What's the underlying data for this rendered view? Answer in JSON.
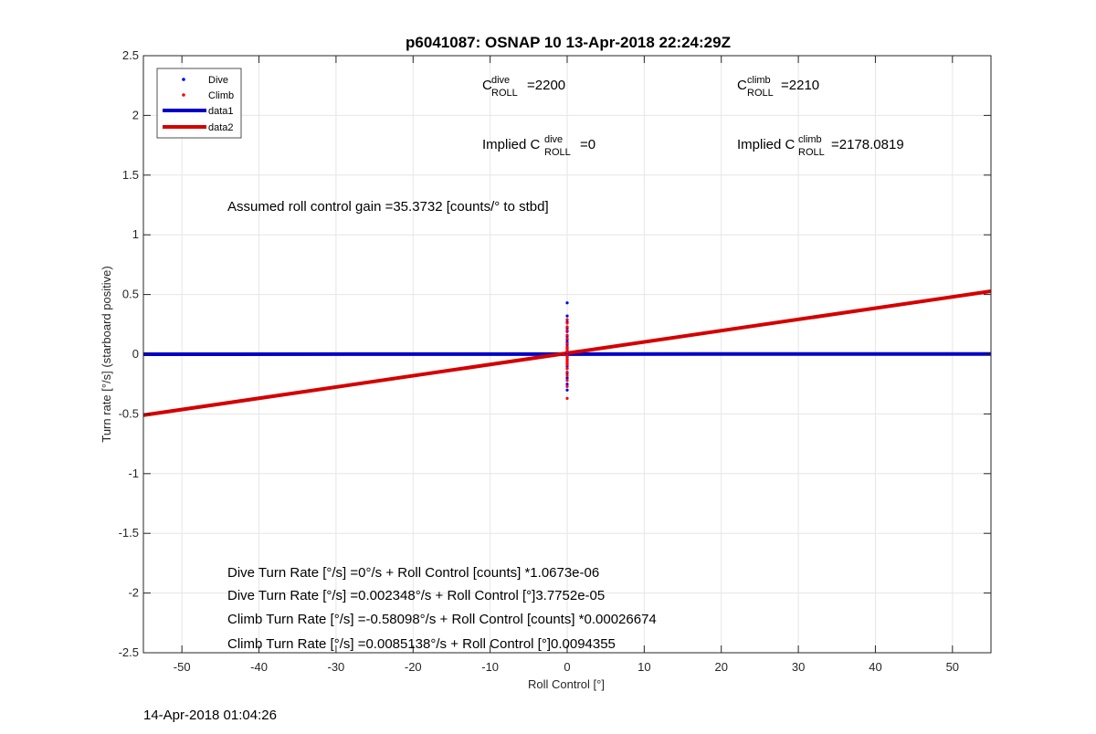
{
  "chart_data": {
    "type": "scatter",
    "title": "p6041087: OSNAP 10 13-Apr-2018 22:24:29Z",
    "xlabel": "Roll Control [°]",
    "ylabel": "Turn rate [°/s] (starboard positive)",
    "xlim": [
      -55,
      55
    ],
    "ylim": [
      -2.5,
      2.5
    ],
    "xticks": [
      "-50",
      "-40",
      "-30",
      "-20",
      "-10",
      "0",
      "10",
      "20",
      "30",
      "40",
      "50"
    ],
    "yticks": [
      "2.5",
      "2",
      "1.5",
      "1",
      "0.5",
      "0",
      "-0.5",
      "-1",
      "-1.5",
      "-2",
      "-2.5"
    ],
    "grid": true,
    "legend_position": "top-left",
    "legend": [
      "Dive",
      "Climb",
      "data1",
      "data2"
    ],
    "colors": {
      "dive": "#0000ff",
      "climb": "#ff0000",
      "data1": "#0000c8",
      "data2": "#d40000",
      "grid": "#e6e6e6"
    },
    "series": [
      {
        "name": "Dive",
        "kind": "points",
        "points": [
          [
            0,
            0.43
          ],
          [
            0,
            0.32
          ],
          [
            0,
            0.27
          ],
          [
            0,
            0.22
          ],
          [
            0,
            0.19
          ],
          [
            0,
            0.15
          ],
          [
            0,
            0.12
          ],
          [
            0,
            0.1
          ],
          [
            0,
            0.08
          ],
          [
            0,
            0.06
          ],
          [
            0,
            0.05
          ],
          [
            0,
            0.03
          ],
          [
            0,
            0.02
          ],
          [
            0,
            0.01
          ],
          [
            0,
            0.0
          ],
          [
            0,
            -0.01
          ],
          [
            0,
            -0.02
          ],
          [
            0,
            -0.04
          ],
          [
            0,
            -0.06
          ],
          [
            0,
            -0.08
          ],
          [
            0,
            -0.1
          ],
          [
            0,
            -0.12
          ],
          [
            0,
            -0.16
          ],
          [
            0,
            -0.2
          ],
          [
            0,
            -0.25
          ],
          [
            0,
            -0.3
          ]
        ]
      },
      {
        "name": "Climb",
        "kind": "points",
        "points": [
          [
            0,
            0.29
          ],
          [
            0,
            0.26
          ],
          [
            0,
            0.23
          ],
          [
            0,
            0.2
          ],
          [
            0,
            0.16
          ],
          [
            0,
            0.13
          ],
          [
            0,
            0.09
          ],
          [
            0,
            0.06
          ],
          [
            0,
            0.04
          ],
          [
            0,
            0.02
          ],
          [
            0,
            -0.01
          ],
          [
            0,
            -0.03
          ],
          [
            0,
            -0.05
          ],
          [
            0,
            -0.07
          ],
          [
            0,
            -0.09
          ],
          [
            0,
            -0.12
          ],
          [
            0,
            -0.15
          ],
          [
            0,
            -0.18
          ],
          [
            0,
            -0.22
          ],
          [
            0,
            -0.27
          ],
          [
            0,
            -0.37
          ]
        ]
      },
      {
        "name": "data1",
        "kind": "line",
        "points": [
          [
            -55,
            0.0
          ],
          [
            55,
            0.0023
          ]
        ]
      },
      {
        "name": "data2",
        "kind": "line",
        "points": [
          [
            -55,
            -0.5104
          ],
          [
            55,
            0.5274
          ]
        ]
      }
    ],
    "annotations": {
      "c_dive": {
        "prefix": "C",
        "sup": "dive",
        "sub": "ROLL",
        "suffix": " =2200"
      },
      "c_climb": {
        "prefix": "C",
        "sup": "climb",
        "sub": "ROLL",
        "suffix": " =2210"
      },
      "implied_dive": {
        "prefix": "Implied C",
        "sup": "dive",
        "sub": "ROLL",
        "suffix": " =0"
      },
      "implied_climb": {
        "prefix": "Implied C",
        "sup": "climb",
        "sub": "ROLL",
        "suffix": " =2178.0819"
      },
      "gain": "Assumed roll control gain =35.3732 [counts/° to stbd]",
      "eq1": "Dive Turn Rate [°/s] =0°/s + Roll Control [counts] *1.0673e-06",
      "eq2": "Dive Turn Rate [°/s] =0.002348°/s + Roll Control [°]3.7752e-05",
      "eq3": "Climb Turn Rate [°/s] =-0.58098°/s + Roll Control [counts] *0.00026674",
      "eq4": "Climb Turn Rate [°/s] =0.0085138°/s + Roll Control [°]0.0094355"
    }
  },
  "footer_timestamp": "14-Apr-2018 01:04:26"
}
